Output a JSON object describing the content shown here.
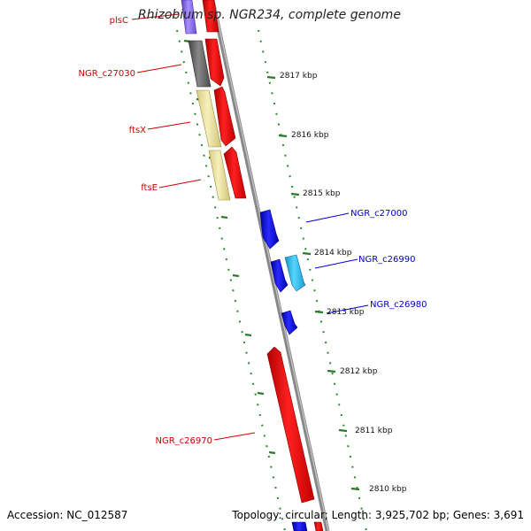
{
  "title": "Rhizobium sp. NGR234, complete genome",
  "footer": {
    "accession": "Accession: NC_012587",
    "summary": "Topology: circular; Length: 3,925,702 bp; Genes: 3,691"
  },
  "colors": {
    "label_left": "#cc0000",
    "label_right": "#0000cc",
    "ruler_green": "#2a8a2a",
    "backbone": "#888888",
    "gene_red": "#ff0000",
    "gene_blue": "#1a1aff",
    "gene_cyan": "#33c4f0",
    "gene_khaki": "#efe5a0",
    "gene_gray": "#666666",
    "gene_purple": "#8a6fe0"
  },
  "kbp_marks": [
    "2817 kbp",
    "2816 kbp",
    "2815 kbp",
    "2814 kbp",
    "2813 kbp",
    "2812 kbp",
    "2811 kbp",
    "2810 kbp"
  ],
  "genes_left": [
    {
      "label": "plsC"
    },
    {
      "label": "NGR_c27030"
    },
    {
      "label": "ftsX"
    },
    {
      "label": "ftsE"
    },
    {
      "label": "NGR_c26970"
    }
  ],
  "genes_right": [
    {
      "label": "NGR_c27000"
    },
    {
      "label": "NGR_c26990"
    },
    {
      "label": "NGR_c26980"
    }
  ]
}
